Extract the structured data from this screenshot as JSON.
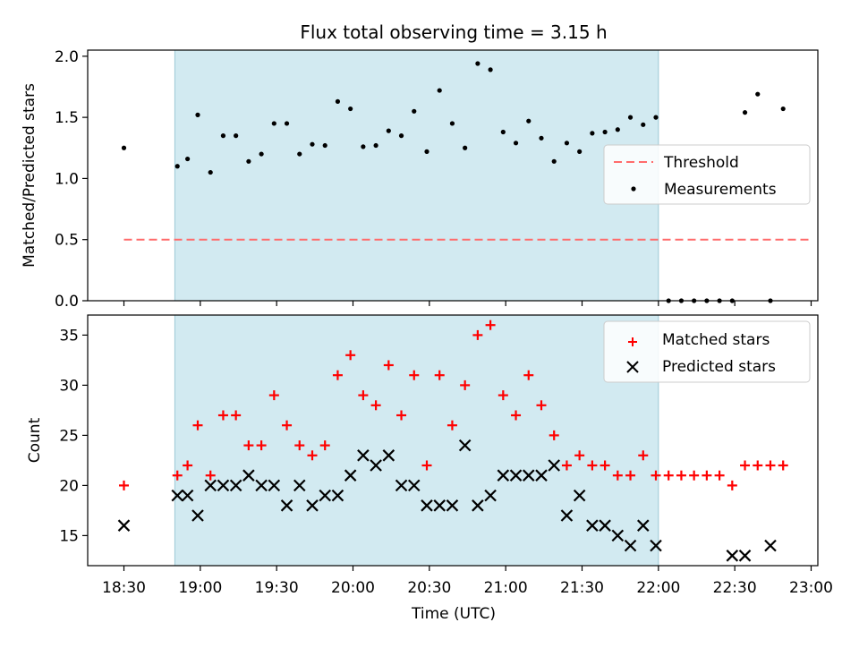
{
  "figure": {
    "title": "Flux total observing time = 3.15 h"
  },
  "chart_data": [
    {
      "type": "scatter",
      "panel": "top",
      "ylabel": "Matched/Predicted stars",
      "xlabel": "",
      "ylim": [
        0,
        2.05
      ],
      "yticks": [
        "0.0",
        "0.5",
        "1.0",
        "1.5",
        "2.0"
      ],
      "ytick_values": [
        0,
        0.5,
        1.0,
        1.5,
        2.0
      ],
      "shaded_span": {
        "start": "18:50",
        "end": "22:00",
        "color": "#add8e6"
      },
      "threshold": {
        "name": "Threshold",
        "value": 0.5,
        "x": [
          "18:30",
          "23:00"
        ],
        "color": "#ff6b6b"
      },
      "series": [
        {
          "name": "Measurements",
          "color": "#000000",
          "x": [
            "18:30",
            "18:51",
            "18:55",
            "18:59",
            "19:04",
            "19:09",
            "19:14",
            "19:19",
            "19:24",
            "19:29",
            "19:34",
            "19:39",
            "19:44",
            "19:49",
            "19:54",
            "19:59",
            "20:04",
            "20:09",
            "20:14",
            "20:19",
            "20:24",
            "20:29",
            "20:34",
            "20:39",
            "20:44",
            "20:49",
            "20:54",
            "20:59",
            "21:04",
            "21:09",
            "21:14",
            "21:19",
            "21:24",
            "21:29",
            "21:34",
            "21:39",
            "21:44",
            "21:49",
            "21:54",
            "21:59",
            "22:04",
            "22:09",
            "22:14",
            "22:19",
            "22:24",
            "22:29",
            "22:34",
            "22:39",
            "22:44",
            "22:49"
          ],
          "y": [
            1.25,
            1.1,
            1.16,
            1.52,
            1.05,
            1.35,
            1.35,
            1.14,
            1.2,
            1.45,
            1.45,
            1.2,
            1.28,
            1.27,
            1.63,
            1.57,
            1.26,
            1.27,
            1.39,
            1.35,
            1.55,
            1.22,
            1.72,
            1.45,
            1.25,
            1.94,
            1.89,
            1.38,
            1.29,
            1.47,
            1.33,
            1.14,
            1.29,
            1.22,
            1.37,
            1.38,
            1.4,
            1.5,
            1.44,
            1.5,
            0.0,
            0.0,
            0.0,
            0.0,
            0.0,
            0.0,
            1.54,
            1.69,
            0.0,
            1.57
          ]
        }
      ],
      "legend": {
        "position": "center-right",
        "entries": [
          "Threshold",
          "Measurements"
        ]
      }
    },
    {
      "type": "scatter",
      "panel": "bottom",
      "ylabel": "Count",
      "xlabel": "Time (UTC)",
      "ylim": [
        12,
        37
      ],
      "yticks": [
        "15",
        "20",
        "25",
        "30",
        "35"
      ],
      "ytick_values": [
        15,
        20,
        25,
        30,
        35
      ],
      "xticks": [
        "18:30",
        "19:00",
        "19:30",
        "20:00",
        "20:30",
        "21:00",
        "21:30",
        "22:00",
        "22:30",
        "23:00"
      ],
      "shaded_span": {
        "start": "18:50",
        "end": "22:00",
        "color": "#add8e6"
      },
      "series": [
        {
          "name": "Matched stars",
          "marker": "+",
          "color": "#ff0000",
          "x": [
            "18:30",
            "18:51",
            "18:55",
            "18:59",
            "19:04",
            "19:09",
            "19:14",
            "19:19",
            "19:24",
            "19:29",
            "19:34",
            "19:39",
            "19:44",
            "19:49",
            "19:54",
            "19:59",
            "20:04",
            "20:09",
            "20:14",
            "20:19",
            "20:24",
            "20:29",
            "20:34",
            "20:39",
            "20:44",
            "20:49",
            "20:54",
            "20:59",
            "21:04",
            "21:09",
            "21:14",
            "21:19",
            "21:24",
            "21:29",
            "21:34",
            "21:39",
            "21:44",
            "21:49",
            "21:54",
            "21:59",
            "22:04",
            "22:09",
            "22:14",
            "22:19",
            "22:24",
            "22:29",
            "22:34",
            "22:39",
            "22:44",
            "22:49"
          ],
          "y": [
            20,
            21,
            22,
            26,
            21,
            27,
            27,
            24,
            24,
            29,
            26,
            24,
            23,
            24,
            31,
            33,
            29,
            28,
            32,
            27,
            31,
            22,
            31,
            26,
            30,
            35,
            36,
            29,
            27,
            31,
            28,
            25,
            22,
            23,
            22,
            22,
            21,
            21,
            23,
            21,
            21,
            21,
            21,
            21,
            21,
            20,
            22,
            22,
            22,
            22
          ]
        },
        {
          "name": "Predicted stars",
          "marker": "x",
          "color": "#000000",
          "x": [
            "18:30",
            "18:51",
            "18:55",
            "18:59",
            "19:04",
            "19:09",
            "19:14",
            "19:19",
            "19:24",
            "19:29",
            "19:34",
            "19:39",
            "19:44",
            "19:49",
            "19:54",
            "19:59",
            "20:04",
            "20:09",
            "20:14",
            "20:19",
            "20:24",
            "20:29",
            "20:34",
            "20:39",
            "20:44",
            "20:49",
            "20:54",
            "20:59",
            "21:04",
            "21:09",
            "21:14",
            "21:19",
            "21:24",
            "21:29",
            "21:34",
            "21:39",
            "21:44",
            "21:49",
            "21:54",
            "21:59",
            "22:29",
            "22:34",
            "22:44"
          ],
          "y": [
            16,
            19,
            19,
            17,
            20,
            20,
            20,
            21,
            20,
            20,
            18,
            20,
            18,
            19,
            19,
            21,
            23,
            22,
            23,
            20,
            20,
            18,
            18,
            18,
            24,
            18,
            19,
            21,
            21,
            21,
            21,
            22,
            17,
            19,
            16,
            16,
            15,
            14,
            16,
            14,
            13,
            13,
            14
          ]
        }
      ],
      "legend": {
        "position": "top-right",
        "entries": [
          "Matched stars",
          "Predicted stars"
        ]
      }
    }
  ]
}
